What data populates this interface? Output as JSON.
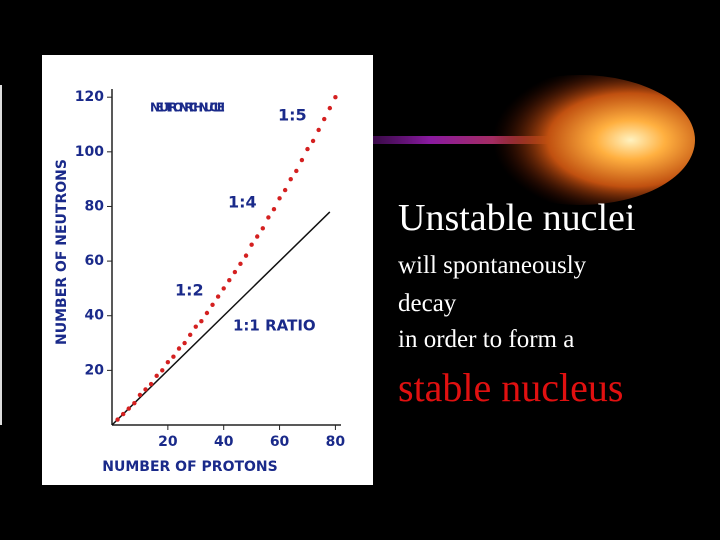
{
  "slide": {
    "heading": "Unstable nuclei",
    "lines": [
      "will spontaneously",
      "decay",
      "in order to form a"
    ],
    "emphasis": "stable nucleus"
  },
  "chart_data": {
    "type": "scatter",
    "x_label": "NUMBER OF PROTONS",
    "y_label": "NUMBER OF NEUTRONS",
    "annotations": [
      "NEUTRON RICH NUCLEI",
      "1:5",
      "1:4",
      "1:2"
    ],
    "reference_line": {
      "label": "1:1 RATIO",
      "x": [
        0,
        78
      ],
      "y": [
        0,
        78
      ]
    },
    "color": "#d42020",
    "x": [
      2,
      4,
      6,
      8,
      10,
      12,
      14,
      16,
      18,
      20,
      22,
      24,
      26,
      28,
      30,
      32,
      34,
      36,
      38,
      40,
      42,
      44,
      46,
      48,
      50,
      52,
      54,
      56,
      58,
      60,
      62,
      64,
      66,
      68,
      70,
      72,
      74,
      76,
      78,
      80
    ],
    "values": [
      2,
      4,
      6,
      8,
      11,
      13,
      15,
      18,
      20,
      23,
      25,
      28,
      30,
      33,
      36,
      38,
      41,
      44,
      47,
      50,
      53,
      56,
      59,
      62,
      66,
      69,
      72,
      76,
      79,
      83,
      86,
      90,
      93,
      97,
      101,
      104,
      108,
      112,
      116,
      120
    ],
    "xlim": [
      0,
      82
    ],
    "ylim": [
      0,
      123
    ],
    "xticks": [
      20,
      40,
      60,
      80
    ],
    "yticks": [
      20,
      40,
      60,
      80,
      100,
      120
    ]
  }
}
